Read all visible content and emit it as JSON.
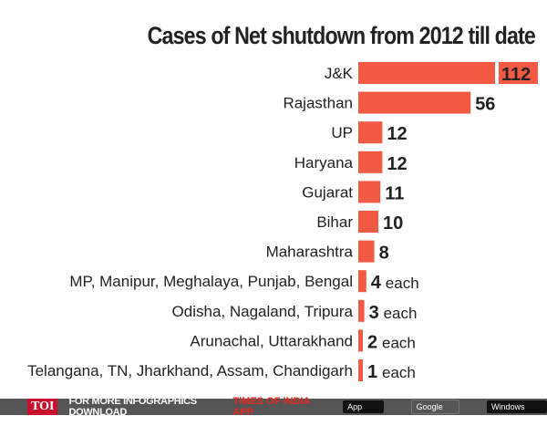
{
  "chart_data": {
    "type": "bar",
    "orientation": "horizontal",
    "title": "Cases of Net shutdown from 2012 till date",
    "categories": [
      "J&K",
      "Rajasthan",
      "UP",
      "Haryana",
      "Gujarat",
      "Bihar",
      "Maharashtra",
      "MP, Manipur, Meghalaya, Punjab, Bengal",
      "Odisha, Nagaland, Tripura",
      "Arunachal, Uttarakhand",
      "Telangana, TN, Jharkhand, Assam, Chandigarh"
    ],
    "values": [
      112,
      56,
      12,
      12,
      11,
      10,
      8,
      4,
      3,
      2,
      1
    ],
    "value_labels": [
      "112",
      "56",
      "12",
      "12",
      "11",
      "10",
      "8",
      "4",
      "3",
      "2",
      "1"
    ],
    "suffixes": [
      "",
      "",
      "",
      "",
      "",
      "",
      "",
      "each",
      "each",
      "each",
      "each"
    ],
    "bar_color": "#f25a43",
    "grid": false
  },
  "footer": {
    "logo": "TOI",
    "text": "FOR MORE  INFOGRAPHICS DOWNLOAD",
    "app": "TIMES OF INDIA  APP",
    "stores": [
      "App Store",
      "Google play",
      "Windows Phone"
    ]
  }
}
